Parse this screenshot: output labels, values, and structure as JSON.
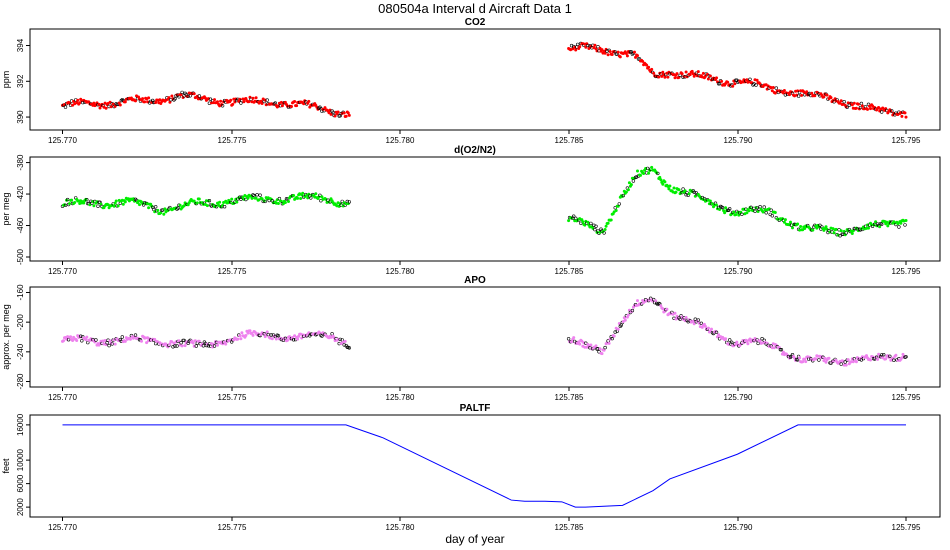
{
  "figure": {
    "title": "080504a   Interval d Aircraft Data 1",
    "xlabel": "day of year"
  },
  "chart_data": [
    {
      "type": "scatter",
      "title": "CO2",
      "ylabel": "ppm",
      "color": "#ff0000",
      "xlim": [
        125.7695,
        125.7955
      ],
      "ylim": [
        389.5,
        394.7
      ],
      "xticks": [
        "125.770",
        "125.775",
        "125.780",
        "125.785",
        "125.790",
        "125.795"
      ],
      "yticks": [
        "390",
        "392",
        "394"
      ],
      "series": [
        {
          "x": [
            125.77,
            125.7715,
            125.7725,
            125.7735,
            125.7745,
            125.7755,
            125.7765,
            125.7775,
            125.7785
          ],
          "y": [
            390.6,
            390.7,
            390.9,
            391.3,
            391.0,
            390.8,
            390.7,
            390.5,
            390.3
          ]
        },
        {
          "x": [
            125.785,
            125.786,
            125.787,
            125.7875,
            125.788,
            125.789,
            125.79,
            125.791,
            125.792,
            125.793,
            125.794,
            125.795
          ],
          "y": [
            393.8,
            393.7,
            393.3,
            392.4,
            392.6,
            392.3,
            392.0,
            391.5,
            391.2,
            391.0,
            390.5,
            390.3
          ]
        }
      ]
    },
    {
      "type": "scatter",
      "title": "d(O2/N2)",
      "ylabel": "per meg",
      "color": "#00ee00",
      "xlim": [
        125.7695,
        125.7955
      ],
      "ylim": [
        -500,
        -378
      ],
      "xticks": [
        "125.770",
        "125.775",
        "125.780",
        "125.785",
        "125.790",
        "125.795"
      ],
      "yticks": [
        "-380",
        "-420",
        "-460",
        "-500"
      ],
      "series": [
        {
          "x": [
            125.77,
            125.771,
            125.772,
            125.773,
            125.774,
            125.775,
            125.776,
            125.777,
            125.778,
            125.7785
          ],
          "y": [
            -432,
            -434,
            -433,
            -438,
            -430,
            -428,
            -429,
            -427,
            -425,
            -430
          ]
        },
        {
          "x": [
            125.785,
            125.7855,
            125.786,
            125.7865,
            125.787,
            125.7875,
            125.788,
            125.789,
            125.79,
            125.791,
            125.792,
            125.793,
            125.794,
            125.795
          ],
          "y": [
            -450,
            -462,
            -470,
            -430,
            -400,
            -390,
            -408,
            -425,
            -442,
            -445,
            -468,
            -465,
            -460,
            -452
          ]
        }
      ]
    },
    {
      "type": "scatter",
      "title": "APO",
      "ylabel": "approx. per meg",
      "color": "#ee82ee",
      "xlim": [
        125.7695,
        125.7955
      ],
      "ylim": [
        -282,
        -158
      ],
      "xticks": [
        "125.770",
        "125.775",
        "125.780",
        "125.785",
        "125.790",
        "125.795"
      ],
      "yticks": [
        "-160",
        "-200",
        "-240",
        "-280"
      ],
      "series": [
        {
          "x": [
            125.77,
            125.771,
            125.772,
            125.773,
            125.774,
            125.775,
            125.776,
            125.777,
            125.778,
            125.7785
          ],
          "y": [
            -225,
            -228,
            -226,
            -224,
            -230,
            -222,
            -218,
            -224,
            -215,
            -228
          ]
        },
        {
          "x": [
            125.785,
            125.7855,
            125.786,
            125.7865,
            125.787,
            125.7875,
            125.788,
            125.789,
            125.79,
            125.791,
            125.792,
            125.793,
            125.794,
            125.795
          ],
          "y": [
            -222,
            -236,
            -240,
            -205,
            -180,
            -170,
            -184,
            -205,
            -228,
            -232,
            -255,
            -250,
            -248,
            -242
          ]
        }
      ]
    },
    {
      "type": "line",
      "title": "PALTF",
      "ylabel": "feet",
      "color": "#0000ff",
      "xlim": [
        125.7695,
        125.7955
      ],
      "ylim": [
        1000,
        17000
      ],
      "xticks": [
        "125.770",
        "125.775",
        "125.780",
        "125.785",
        "125.790",
        "125.795"
      ],
      "yticks": [
        "2000",
        "6000",
        "10000",
        "16000"
      ],
      "series": [
        {
          "x": [
            125.77,
            125.7784,
            125.7795,
            125.7833,
            125.7837,
            125.7843,
            125.7848,
            125.7852,
            125.7855,
            125.7862,
            125.7866,
            125.7875,
            125.788,
            125.79,
            125.7918,
            125.795
          ],
          "y": [
            16000,
            16000,
            13800,
            3200,
            3000,
            3000,
            2900,
            2000,
            2000,
            2200,
            2300,
            4800,
            6800,
            11000,
            16000,
            16000
          ]
        }
      ]
    }
  ]
}
